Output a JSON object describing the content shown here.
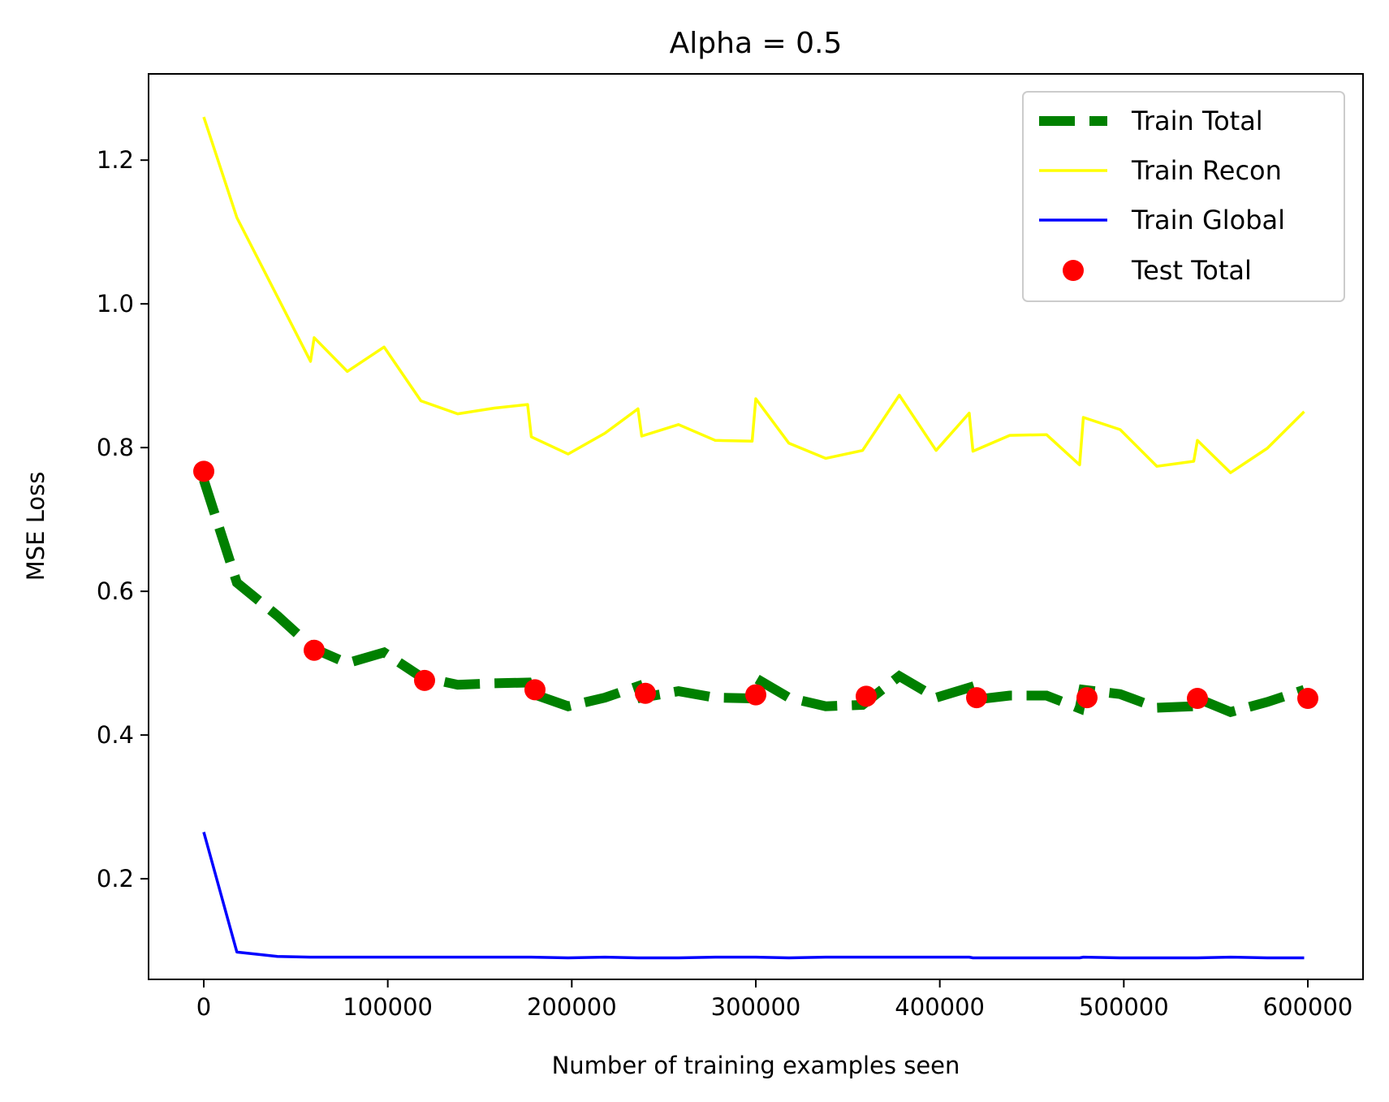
{
  "chart_data": {
    "type": "line",
    "title": "Alpha = 0.5",
    "xlabel": "Number of training examples seen",
    "ylabel": "MSE Loss",
    "xlim": [
      -30000,
      630000
    ],
    "ylim": [
      0.06,
      1.32
    ],
    "xticks": [
      0,
      100000,
      200000,
      300000,
      400000,
      500000,
      600000
    ],
    "xtick_labels": [
      "0",
      "100000",
      "200000",
      "300000",
      "400000",
      "500000",
      "600000"
    ],
    "yticks": [
      0.2,
      0.4,
      0.6,
      0.8,
      1.0,
      1.2
    ],
    "ytick_labels": [
      "0.2",
      "0.4",
      "0.6",
      "0.8",
      "1.0",
      "1.2"
    ],
    "grid": false,
    "legend_position": "top-right",
    "series": [
      {
        "name": "Train Total",
        "style": "dashed",
        "color": "#008000",
        "x": [
          0,
          18000,
          40000,
          58000,
          60000,
          78000,
          98000,
          118000,
          138000,
          158000,
          176000,
          178000,
          198000,
          218000,
          236000,
          238000,
          258000,
          278000,
          298000,
          300000,
          318000,
          338000,
          358000,
          378000,
          398000,
          416000,
          418000,
          438000,
          458000,
          476000,
          478000,
          498000,
          518000,
          538000,
          540000,
          558000,
          578000,
          598000
        ],
        "y": [
          0.755,
          0.612,
          0.566,
          0.524,
          0.52,
          0.5,
          0.515,
          0.481,
          0.47,
          0.472,
          0.473,
          0.458,
          0.44,
          0.452,
          0.468,
          0.452,
          0.461,
          0.452,
          0.451,
          0.479,
          0.452,
          0.44,
          0.442,
          0.482,
          0.452,
          0.466,
          0.449,
          0.455,
          0.455,
          0.437,
          0.463,
          0.457,
          0.438,
          0.44,
          0.451,
          0.432,
          0.446,
          0.463
        ]
      },
      {
        "name": "Train Recon",
        "style": "solid",
        "color": "#ffff00",
        "x": [
          0,
          18000,
          40000,
          58000,
          60000,
          78000,
          98000,
          118000,
          138000,
          158000,
          176000,
          178000,
          198000,
          218000,
          236000,
          238000,
          258000,
          278000,
          298000,
          300000,
          318000,
          338000,
          358000,
          378000,
          398000,
          416000,
          418000,
          438000,
          458000,
          476000,
          478000,
          498000,
          518000,
          538000,
          540000,
          558000,
          578000,
          598000
        ],
        "y": [
          1.26,
          1.12,
          1.01,
          0.92,
          0.953,
          0.906,
          0.94,
          0.865,
          0.847,
          0.855,
          0.86,
          0.815,
          0.791,
          0.82,
          0.854,
          0.816,
          0.832,
          0.81,
          0.809,
          0.868,
          0.806,
          0.785,
          0.796,
          0.873,
          0.796,
          0.848,
          0.795,
          0.817,
          0.818,
          0.776,
          0.842,
          0.825,
          0.774,
          0.781,
          0.81,
          0.765,
          0.799,
          0.85
        ]
      },
      {
        "name": "Train Global",
        "style": "solid",
        "color": "#0000ff",
        "x": [
          0,
          18000,
          40000,
          58000,
          60000,
          78000,
          98000,
          118000,
          138000,
          158000,
          176000,
          178000,
          198000,
          218000,
          236000,
          238000,
          258000,
          278000,
          298000,
          300000,
          318000,
          338000,
          358000,
          378000,
          398000,
          416000,
          418000,
          438000,
          458000,
          476000,
          478000,
          498000,
          518000,
          538000,
          540000,
          558000,
          578000,
          598000
        ],
        "y": [
          0.265,
          0.098,
          0.092,
          0.091,
          0.091,
          0.091,
          0.091,
          0.091,
          0.091,
          0.091,
          0.091,
          0.091,
          0.09,
          0.091,
          0.09,
          0.09,
          0.09,
          0.091,
          0.091,
          0.091,
          0.09,
          0.091,
          0.091,
          0.091,
          0.091,
          0.091,
          0.09,
          0.09,
          0.09,
          0.09,
          0.091,
          0.09,
          0.09,
          0.09,
          0.09,
          0.091,
          0.09,
          0.09
        ]
      },
      {
        "name": "Test Total",
        "style": "scatter",
        "color": "#ff0000",
        "x": [
          0,
          60000,
          120000,
          180000,
          240000,
          300000,
          360000,
          420000,
          480000,
          540000,
          600000
        ],
        "y": [
          0.767,
          0.518,
          0.476,
          0.463,
          0.458,
          0.456,
          0.454,
          0.452,
          0.452,
          0.451,
          0.451
        ]
      }
    ]
  }
}
